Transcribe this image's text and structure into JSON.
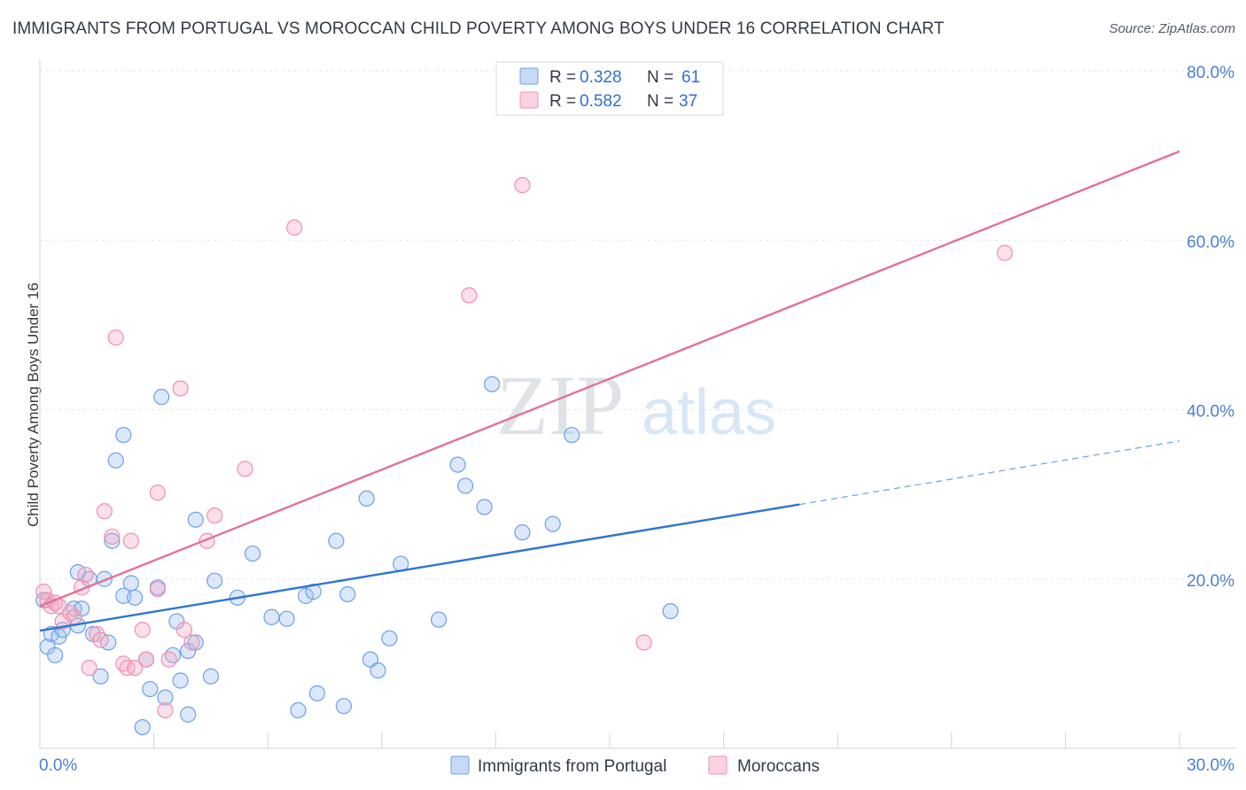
{
  "title": "IMMIGRANTS FROM PORTUGAL VS MOROCCAN CHILD POVERTY AMONG BOYS UNDER 16 CORRELATION CHART",
  "source": "Source: ZipAtlas.com",
  "watermark": {
    "zip": "ZIP",
    "atlas": "atlas"
  },
  "legend": {
    "rows": [
      {
        "r_label": "R =",
        "r_value": "0.328",
        "n_label": "N =",
        "n_value": "61",
        "color": "#6ea0e6"
      },
      {
        "r_label": "R =",
        "r_value": "0.582",
        "n_label": "N =",
        "n_value": "37",
        "color": "#f08fb0"
      }
    ]
  },
  "bottom_legend": [
    {
      "label": "Immigrants from Portugal",
      "color": "#6ea0e6"
    },
    {
      "label": "Moroccans",
      "color": "#f08fb0"
    }
  ],
  "chart_data": {
    "type": "scatter",
    "title": "IMMIGRANTS FROM PORTUGAL VS MOROCCAN CHILD POVERTY AMONG BOYS UNDER 16 CORRELATION CHART",
    "xlabel": "",
    "ylabel": "Child Poverty Among Boys Under 16",
    "xlim": [
      0,
      30
    ],
    "ylim": [
      0,
      80
    ],
    "x_tick_labels": [
      {
        "value": 0,
        "label": "0.0%"
      },
      {
        "value": 30,
        "label": "30.0%"
      }
    ],
    "y_tick_labels": [
      {
        "value": 20,
        "label": "20.0%"
      },
      {
        "value": 40,
        "label": "40.0%"
      },
      {
        "value": 60,
        "label": "60.0%"
      },
      {
        "value": 80,
        "label": "80.0%"
      }
    ],
    "series": [
      {
        "name": "Immigrants from Portugal",
        "color": "#6ea0e6",
        "r": 0.328,
        "n": 61,
        "trend": {
          "x0": 0,
          "y0": 13.9,
          "x1": 20,
          "y1": 28.8,
          "dash_to_x": 30,
          "dash_to_y": 36.3
        },
        "points": [
          [
            0.1,
            17.5
          ],
          [
            0.2,
            12.0
          ],
          [
            0.3,
            13.5
          ],
          [
            0.4,
            11.0
          ],
          [
            0.5,
            13.2
          ],
          [
            0.6,
            14.0
          ],
          [
            0.9,
            16.5
          ],
          [
            1.0,
            14.5
          ],
          [
            1.0,
            20.8
          ],
          [
            1.1,
            16.5
          ],
          [
            1.3,
            20.0
          ],
          [
            1.4,
            13.5
          ],
          [
            1.6,
            8.5
          ],
          [
            1.7,
            20.0
          ],
          [
            1.8,
            12.5
          ],
          [
            1.9,
            24.5
          ],
          [
            2.0,
            34.0
          ],
          [
            2.2,
            37.0
          ],
          [
            2.2,
            18.0
          ],
          [
            2.4,
            19.5
          ],
          [
            2.5,
            17.8
          ],
          [
            2.7,
            2.5
          ],
          [
            2.8,
            10.5
          ],
          [
            2.9,
            7.0
          ],
          [
            3.1,
            19.0
          ],
          [
            3.2,
            41.5
          ],
          [
            3.3,
            6.0
          ],
          [
            3.5,
            11.0
          ],
          [
            3.6,
            15.0
          ],
          [
            3.7,
            8.0
          ],
          [
            3.9,
            4.0
          ],
          [
            3.9,
            11.5
          ],
          [
            4.1,
            12.5
          ],
          [
            4.1,
            27.0
          ],
          [
            4.5,
            8.5
          ],
          [
            4.6,
            19.8
          ],
          [
            5.2,
            17.8
          ],
          [
            5.6,
            23.0
          ],
          [
            6.1,
            15.5
          ],
          [
            6.5,
            15.3
          ],
          [
            6.8,
            4.5
          ],
          [
            7.0,
            18.0
          ],
          [
            7.2,
            18.5
          ],
          [
            7.3,
            6.5
          ],
          [
            7.8,
            24.5
          ],
          [
            8.0,
            5.0
          ],
          [
            8.1,
            18.2
          ],
          [
            8.6,
            29.5
          ],
          [
            8.7,
            10.5
          ],
          [
            8.9,
            9.2
          ],
          [
            9.2,
            13.0
          ],
          [
            9.5,
            21.8
          ],
          [
            10.5,
            15.2
          ],
          [
            11.0,
            33.5
          ],
          [
            11.2,
            31.0
          ],
          [
            11.7,
            28.5
          ],
          [
            11.9,
            43.0
          ],
          [
            12.7,
            25.5
          ],
          [
            13.5,
            26.5
          ],
          [
            14.0,
            37.0
          ],
          [
            16.6,
            16.2
          ]
        ]
      },
      {
        "name": "Moroccans",
        "color": "#f08fb0",
        "r": 0.582,
        "n": 37,
        "trend": {
          "x0": 0,
          "y0": 16.8,
          "x1": 30,
          "y1": 70.5
        },
        "points": [
          [
            0.1,
            18.5
          ],
          [
            0.2,
            17.5
          ],
          [
            0.3,
            16.8
          ],
          [
            0.4,
            17.2
          ],
          [
            0.5,
            16.8
          ],
          [
            0.6,
            15.0
          ],
          [
            0.8,
            16.0
          ],
          [
            0.9,
            15.5
          ],
          [
            1.1,
            19.0
          ],
          [
            1.2,
            20.5
          ],
          [
            1.3,
            9.5
          ],
          [
            1.5,
            13.5
          ],
          [
            1.6,
            12.8
          ],
          [
            1.7,
            28.0
          ],
          [
            1.9,
            25.0
          ],
          [
            2.0,
            48.5
          ],
          [
            2.2,
            10.0
          ],
          [
            2.3,
            9.5
          ],
          [
            2.4,
            24.5
          ],
          [
            2.5,
            9.5
          ],
          [
            2.7,
            14.0
          ],
          [
            2.8,
            10.5
          ],
          [
            3.1,
            18.8
          ],
          [
            3.1,
            30.2
          ],
          [
            3.3,
            4.5
          ],
          [
            3.4,
            10.5
          ],
          [
            3.7,
            42.5
          ],
          [
            3.8,
            14.0
          ],
          [
            4.0,
            12.5
          ],
          [
            4.4,
            24.5
          ],
          [
            4.6,
            27.5
          ],
          [
            5.4,
            33.0
          ],
          [
            6.7,
            61.5
          ],
          [
            11.3,
            53.5
          ],
          [
            12.7,
            66.5
          ],
          [
            15.9,
            12.5
          ],
          [
            25.4,
            58.5
          ]
        ]
      }
    ]
  }
}
